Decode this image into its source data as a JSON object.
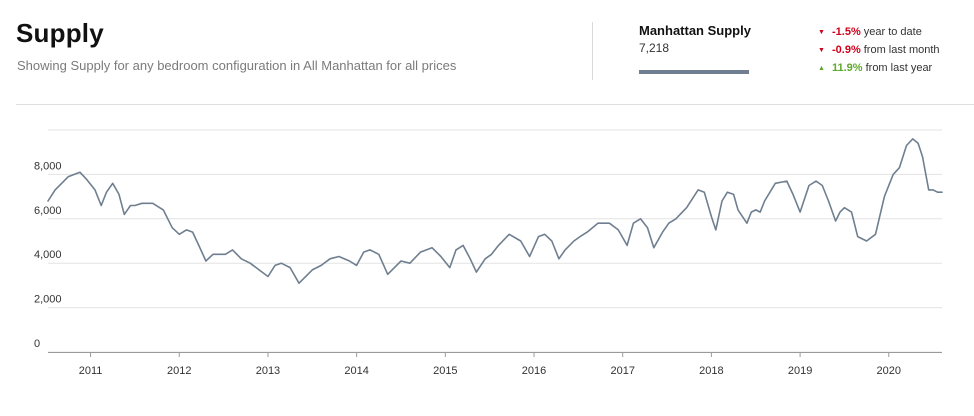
{
  "header": {
    "title": "Supply",
    "subtitle": "Showing Supply for any bedroom configuration in All Manhattan for all prices"
  },
  "summary": {
    "label": "Manhattan Supply",
    "value": "7,218",
    "swatch_color": "#6f7f90",
    "stats": [
      {
        "change": "-1.5%",
        "text": "year to date",
        "direction": "down",
        "color": "#d0021b"
      },
      {
        "change": "-0.9%",
        "text": "from last month",
        "direction": "down",
        "color": "#d0021b"
      },
      {
        "change": "11.9%",
        "text": "from last year",
        "direction": "up",
        "color": "#5ea82a"
      }
    ]
  },
  "chart_data": {
    "type": "line",
    "title": "",
    "xlabel": "",
    "ylabel": "",
    "ylim": [
      0,
      10000
    ],
    "y_ticks": [
      "0",
      "2,000",
      "4,000",
      "6,000",
      "8,000"
    ],
    "y_tick_values": [
      0,
      2000,
      4000,
      6000,
      8000
    ],
    "x_ticks": [
      "2011",
      "2012",
      "2013",
      "2014",
      "2015",
      "2016",
      "2017",
      "2018",
      "2019",
      "2020"
    ],
    "x_tick_values": [
      2011.0,
      2012.0,
      2013.0,
      2014.0,
      2015.0,
      2016.0,
      2017.0,
      2018.0,
      2019.0,
      2020.0
    ],
    "xlim": [
      2010.52,
      2020.6
    ],
    "grid": true,
    "line_color": "#6f7f90",
    "series": [
      {
        "name": "Manhattan Supply",
        "x": [
          2010.52,
          2010.6,
          2010.75,
          2010.88,
          2010.95,
          2011.05,
          2011.12,
          2011.18,
          2011.25,
          2011.32,
          2011.38,
          2011.45,
          2011.5,
          2011.58,
          2011.7,
          2011.82,
          2011.92,
          2012.0,
          2012.08,
          2012.15,
          2012.22,
          2012.3,
          2012.38,
          2012.45,
          2012.52,
          2012.6,
          2012.7,
          2012.8,
          2012.9,
          2013.0,
          2013.08,
          2013.15,
          2013.25,
          2013.35,
          2013.45,
          2013.5,
          2013.6,
          2013.7,
          2013.8,
          2013.92,
          2014.0,
          2014.08,
          2014.15,
          2014.25,
          2014.35,
          2014.45,
          2014.5,
          2014.6,
          2014.72,
          2014.85,
          2014.95,
          2015.05,
          2015.12,
          2015.2,
          2015.28,
          2015.35,
          2015.45,
          2015.52,
          2015.6,
          2015.72,
          2015.85,
          2015.95,
          2016.05,
          2016.12,
          2016.2,
          2016.28,
          2016.35,
          2016.45,
          2016.52,
          2016.6,
          2016.72,
          2016.85,
          2016.95,
          2017.05,
          2017.12,
          2017.2,
          2017.28,
          2017.35,
          2017.45,
          2017.52,
          2017.6,
          2017.72,
          2017.85,
          2017.92,
          2018.0,
          2018.05,
          2018.12,
          2018.18,
          2018.25,
          2018.3,
          2018.4,
          2018.45,
          2018.5,
          2018.55,
          2018.6,
          2018.72,
          2018.85,
          2018.92,
          2019.0,
          2019.1,
          2019.18,
          2019.25,
          2019.32,
          2019.4,
          2019.45,
          2019.5,
          2019.58,
          2019.65,
          2019.75,
          2019.85,
          2019.95,
          2020.05,
          2020.12,
          2020.2,
          2020.27,
          2020.33,
          2020.38,
          2020.45,
          2020.5,
          2020.55,
          2020.6
        ],
        "y": [
          6800,
          7300,
          7900,
          8100,
          7800,
          7300,
          6600,
          7200,
          7600,
          7100,
          6200,
          6600,
          6600,
          6700,
          6700,
          6400,
          5600,
          5300,
          5500,
          5400,
          4800,
          4100,
          4400,
          4400,
          4400,
          4600,
          4200,
          4000,
          3700,
          3400,
          3900,
          4000,
          3800,
          3100,
          3500,
          3700,
          3900,
          4200,
          4300,
          4100,
          3900,
          4500,
          4600,
          4400,
          3500,
          3900,
          4100,
          4000,
          4500,
          4700,
          4300,
          3800,
          4600,
          4800,
          4200,
          3600,
          4200,
          4400,
          4800,
          5300,
          5000,
          4300,
          5200,
          5300,
          5000,
          4200,
          4600,
          5000,
          5200,
          5400,
          5800,
          5800,
          5500,
          4800,
          5800,
          6000,
          5600,
          4700,
          5400,
          5800,
          6000,
          6500,
          7300,
          7200,
          6100,
          5500,
          6800,
          7200,
          7100,
          6400,
          5800,
          6300,
          6400,
          6300,
          6800,
          7600,
          7700,
          7100,
          6300,
          7500,
          7700,
          7500,
          6800,
          5900,
          6300,
          6500,
          6300,
          5200,
          5000,
          5300,
          7000,
          8000,
          8300,
          9300,
          9600,
          9400,
          8800,
          7300,
          7300,
          7200,
          7200
        ]
      }
    ]
  }
}
